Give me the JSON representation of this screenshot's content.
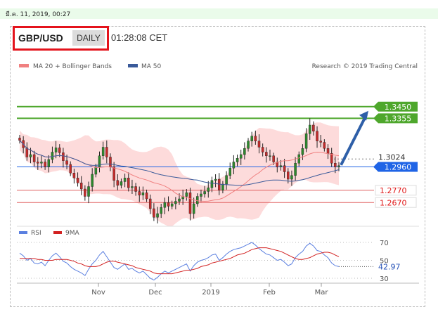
{
  "header": {
    "datetime": "มี.ค. 11, 2019, 00:27",
    "pair": "GBP/USD",
    "timeframe": "DAILY",
    "time": "01:28:08 CET"
  },
  "legend": {
    "ma20": "MA 20 + Bollinger Bands",
    "ma50": "MA 50",
    "credit": "Research © 2019 Trading Central"
  },
  "rsi_legend": {
    "rsi": "RSI",
    "ma9": "9MA"
  },
  "colors": {
    "resistance": "#4ea72c",
    "current": "#1f64e6",
    "support": "#e06060",
    "bollinger_band": "#fcd2d2",
    "ma20": "#f08080",
    "ma50": "#3a5a9a",
    "arrow": "#2e5fa8",
    "rsi": "#5a7fe0",
    "rsi_ma": "#d22020"
  },
  "chart_data": [
    {
      "type": "candlestick",
      "x_labels": [
        "Nov",
        "Dec",
        "2019",
        "Feb",
        "Mar"
      ],
      "ylim": [
        1.25,
        1.37
      ],
      "levels": [
        {
          "value": 1.345,
          "label": "1.3450",
          "kind": "resistance"
        },
        {
          "value": 1.3355,
          "label": "1.3355",
          "kind": "resistance"
        },
        {
          "value": 1.3024,
          "label": "1.3024",
          "kind": "reference"
        },
        {
          "value": 1.296,
          "label": "1.2960",
          "kind": "current"
        },
        {
          "value": 1.277,
          "label": "1.2770",
          "kind": "support"
        },
        {
          "value": 1.267,
          "label": "1.2670",
          "kind": "support"
        }
      ],
      "projection": {
        "from_value": 1.2975,
        "to_value": 1.345
      },
      "series": [
        {
          "name": "MA 20 + Bollinger Bands"
        },
        {
          "name": "MA 50"
        }
      ],
      "close": [
        1.3175,
        1.3115,
        1.304,
        1.306,
        1.3,
        1.299,
        1.3,
        1.296,
        1.302,
        1.308,
        1.3115,
        1.3075,
        1.301,
        1.298,
        1.291,
        1.287,
        1.283,
        1.278,
        1.272,
        1.28,
        1.29,
        1.296,
        1.305,
        1.312,
        1.304,
        1.296,
        1.285,
        1.281,
        1.284,
        1.287,
        1.279,
        1.28,
        1.276,
        1.273,
        1.275,
        1.27,
        1.262,
        1.255,
        1.258,
        1.263,
        1.267,
        1.264,
        1.266,
        1.268,
        1.27,
        1.272,
        1.275,
        1.258,
        1.266,
        1.272,
        1.274,
        1.276,
        1.279,
        1.285,
        1.286,
        1.277,
        1.282,
        1.289,
        1.295,
        1.3,
        1.303,
        1.306,
        1.311,
        1.317,
        1.321,
        1.317,
        1.312,
        1.308,
        1.305,
        1.305,
        1.3,
        1.296,
        1.297,
        1.292,
        1.286,
        1.289,
        1.299,
        1.306,
        1.311,
        1.323,
        1.33,
        1.325,
        1.317,
        1.316,
        1.311,
        1.307,
        1.299,
        1.296,
        1.297
      ]
    },
    {
      "type": "line",
      "title": "RSI",
      "ylim": [
        30,
        70
      ],
      "y_ticks": [
        70,
        50,
        30
      ],
      "current_label": "42.97",
      "series": [
        {
          "name": "RSI",
          "values": [
            58,
            55,
            50,
            52,
            47,
            46,
            48,
            44,
            50,
            55,
            58,
            54,
            49,
            47,
            43,
            40,
            38,
            36,
            33,
            40,
            46,
            50,
            56,
            60,
            54,
            48,
            42,
            40,
            43,
            46,
            40,
            41,
            38,
            36,
            38,
            34,
            30,
            28,
            31,
            35,
            38,
            36,
            38,
            40,
            42,
            44,
            46,
            38,
            44,
            48,
            50,
            51,
            53,
            56,
            57,
            50,
            53,
            57,
            60,
            62,
            63,
            64,
            66,
            68,
            70,
            67,
            63,
            60,
            57,
            56,
            53,
            50,
            51,
            48,
            44,
            46,
            53,
            57,
            60,
            66,
            69,
            66,
            61,
            60,
            56,
            53,
            47,
            44,
            43
          ]
        },
        {
          "name": "9MA",
          "values": [
            52,
            52,
            52,
            52,
            52,
            51,
            51,
            50,
            50,
            50,
            51,
            51,
            51,
            51,
            50,
            49,
            47,
            46,
            44,
            43,
            43,
            43,
            44,
            46,
            48,
            49,
            49,
            48,
            47,
            46,
            45,
            44,
            42,
            41,
            40,
            39,
            38,
            36,
            35,
            35,
            35,
            35,
            35,
            36,
            37,
            38,
            39,
            39,
            40,
            41,
            43,
            44,
            45,
            47,
            48,
            49,
            50,
            51,
            52,
            54,
            56,
            57,
            58,
            60,
            62,
            63,
            64,
            64,
            64,
            63,
            62,
            61,
            60,
            58,
            56,
            54,
            52,
            51,
            51,
            52,
            53,
            55,
            57,
            58,
            59,
            59,
            58,
            56,
            54
          ]
        }
      ]
    }
  ]
}
